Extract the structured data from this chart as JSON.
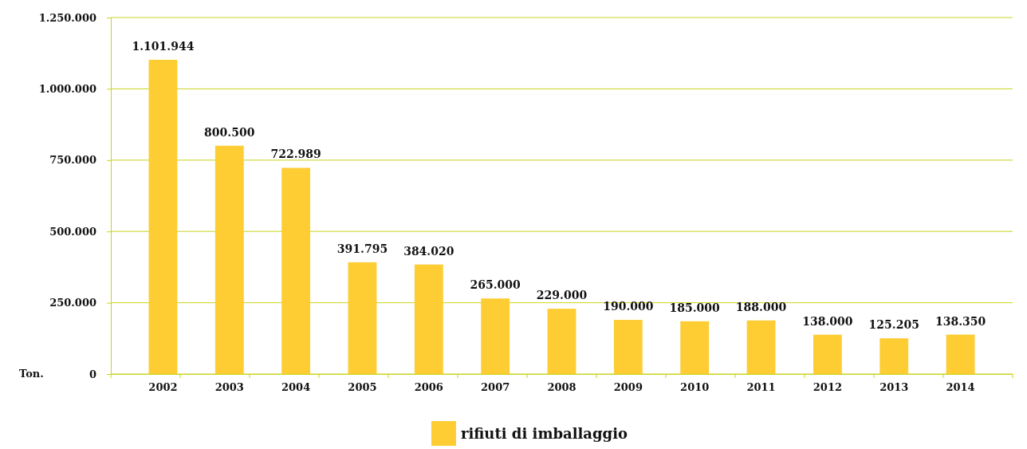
{
  "chart_data": {
    "type": "bar",
    "ylabel": "Ton.",
    "categories": [
      "2002",
      "2003",
      "2004",
      "2005",
      "2006",
      "2007",
      "2008",
      "2009",
      "2010",
      "2011",
      "2012",
      "2013",
      "2014"
    ],
    "series": [
      {
        "name": "rifiuti di imballaggio",
        "color": "#fdcd33",
        "values": [
          1101944,
          800500,
          722989,
          391795,
          384020,
          265000,
          229000,
          190000,
          185000,
          188000,
          138000,
          125205,
          138350
        ],
        "value_labels": [
          "1.101.944",
          "800.500",
          "722.989",
          "391.795",
          "384.020",
          "265.000",
          "229.000",
          "190.000",
          "185.000",
          "188.000",
          "138.000",
          "125.205",
          "138.350"
        ]
      }
    ],
    "ylim": [
      0,
      1250000
    ],
    "yticks": [
      {
        "value": 0,
        "label": "0"
      },
      {
        "value": 250000,
        "label": "250.000"
      },
      {
        "value": 500000,
        "label": "500.000"
      },
      {
        "value": 750000,
        "label": "750.000"
      },
      {
        "value": 1000000,
        "label": "1.000.000"
      },
      {
        "value": 1250000,
        "label": "1.250.000"
      }
    ],
    "grid": "y",
    "legend": "bottom"
  }
}
